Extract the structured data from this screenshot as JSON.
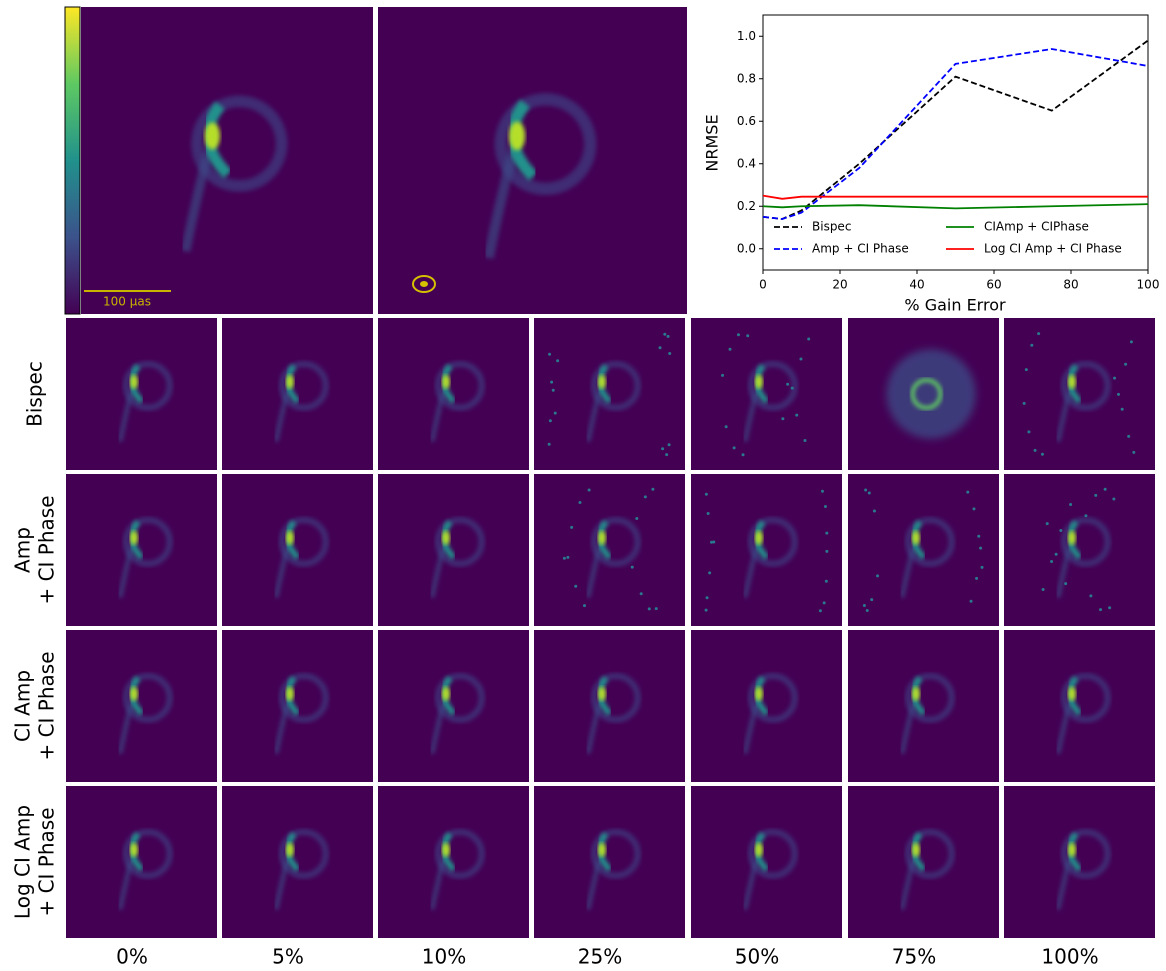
{
  "chart_data": {
    "type": "line",
    "x_label": "% Gain Error",
    "y_label": "NRMSE",
    "x": [
      0,
      5,
      10,
      25,
      50,
      75,
      100
    ],
    "series": [
      {
        "name": "Bispec",
        "color": "#000000",
        "dashed": true,
        "values": [
          0.15,
          0.14,
          0.18,
          0.4,
          0.81,
          0.65,
          0.98
        ]
      },
      {
        "name": "Amp + CI Phase",
        "color": "#0000ff",
        "dashed": true,
        "values": [
          0.15,
          0.14,
          0.17,
          0.38,
          0.87,
          0.94,
          0.86
        ]
      },
      {
        "name": "CIAmp + CIPhase",
        "color": "#008000",
        "dashed": false,
        "values": [
          0.2,
          0.195,
          0.2,
          0.205,
          0.19,
          0.2,
          0.21
        ]
      },
      {
        "name": "Log CI Amp + CI Phase",
        "color": "#ff0000",
        "dashed": false,
        "values": [
          0.25,
          0.235,
          0.245,
          0.245,
          0.245,
          0.245,
          0.245
        ]
      }
    ],
    "xlim": [
      0,
      100
    ],
    "xticks": [
      0,
      20,
      40,
      60,
      80,
      100
    ],
    "ylim": [
      -0.1,
      1.1
    ],
    "yticks": [
      {
        "value": 0,
        "label": "0.0"
      },
      {
        "value": 0.2,
        "label": "0.2"
      },
      {
        "value": 0.4,
        "label": "0.4"
      },
      {
        "value": 0.6,
        "label": "0.6"
      },
      {
        "value": 0.8,
        "label": "0.8"
      },
      {
        "value": 1,
        "label": "1.0"
      }
    ],
    "legend": "lower center",
    "grid": false
  },
  "figure": {
    "scale_label": "100 μas",
    "rows": [
      [
        "Bispec"
      ],
      [
        "Amp",
        "+ CI Phase"
      ],
      [
        "CI Amp",
        "+ CI Phase"
      ],
      [
        "Log CI Amp",
        "+ CI Phase"
      ]
    ],
    "columns": [
      "0%",
      "5%",
      "10%",
      "25%",
      "50%",
      "75%",
      "100%"
    ]
  }
}
